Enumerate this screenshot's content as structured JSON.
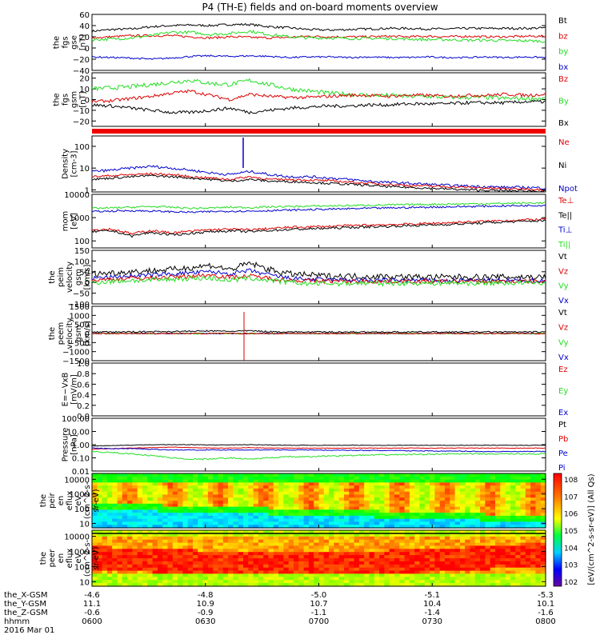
{
  "title": "P4 (TH-E) fields and on-board moments overview",
  "colors": {
    "black": "#000000",
    "red": "#dd0000",
    "green": "#22dd22",
    "blue": "#0000cc"
  },
  "chart_data": [
    {
      "type": "line",
      "ylabel": [
        "the",
        "fgs",
        "gse",
        "[nT]"
      ],
      "yticks": [
        "60",
        "40",
        "20",
        "0",
        "−20",
        "−40"
      ],
      "ylim": [
        -40,
        60
      ],
      "legend": [
        {
          "name": "Bt",
          "color": "black"
        },
        {
          "name": "bz",
          "color": "red"
        },
        {
          "name": "by",
          "color": "green"
        },
        {
          "name": "bx",
          "color": "blue"
        }
      ],
      "series": [
        {
          "name": "Bt",
          "color": "black",
          "noise": 2,
          "values": [
            30,
            33,
            34,
            38,
            40,
            41,
            40,
            42,
            42,
            38,
            36,
            33,
            32,
            33,
            34,
            35,
            35,
            34,
            34,
            35,
            35,
            35,
            35,
            36
          ]
        },
        {
          "name": "bz",
          "color": "red",
          "noise": 2,
          "values": [
            18,
            20,
            22,
            22,
            22,
            20,
            18,
            20,
            19,
            18,
            19,
            21,
            20,
            20,
            20,
            21,
            20,
            21,
            20,
            21,
            20,
            20,
            21,
            21
          ]
        },
        {
          "name": "by",
          "color": "green",
          "noise": 2.5,
          "values": [
            15,
            16,
            18,
            22,
            28,
            28,
            24,
            26,
            30,
            24,
            20,
            18,
            18,
            17,
            17,
            17,
            16,
            15,
            15,
            14,
            14,
            13,
            13,
            12
          ]
        },
        {
          "name": "bx",
          "color": "blue",
          "noise": 1.5,
          "values": [
            -16,
            -17,
            -18,
            -20,
            -18,
            -15,
            -14,
            -15,
            -14,
            -15,
            -17,
            -16,
            -16,
            -17,
            -16,
            -17,
            -17,
            -16,
            -17,
            -17,
            -16,
            -17,
            -16,
            -17
          ]
        }
      ]
    },
    {
      "type": "line",
      "ylabel": [
        "the",
        "fgs",
        "gsm",
        "[nT]"
      ],
      "yticks": [
        "20",
        "10",
        "0",
        "−10",
        "−20"
      ],
      "ylim": [
        -25,
        25
      ],
      "legend": [
        {
          "name": "Bz",
          "color": "red"
        },
        {
          "name": "By",
          "color": "green"
        },
        {
          "name": "Bx",
          "color": "black"
        }
      ],
      "series": [
        {
          "name": "By",
          "color": "green",
          "noise": 2,
          "values": [
            10,
            11,
            12,
            14,
            16,
            18,
            15,
            14,
            18,
            14,
            10,
            8,
            6,
            5,
            4,
            4,
            3,
            3,
            2,
            2,
            2,
            1,
            1,
            1
          ]
        },
        {
          "name": "Bz",
          "color": "red",
          "noise": 1.5,
          "values": [
            -2,
            -1,
            1,
            3,
            6,
            8,
            4,
            0,
            5,
            3,
            2,
            2,
            3,
            4,
            4,
            3,
            4,
            4,
            3,
            4,
            4,
            5,
            4,
            5
          ]
        },
        {
          "name": "Bx",
          "color": "black",
          "noise": 1.5,
          "values": [
            -5,
            -6,
            -8,
            -10,
            -12,
            -12,
            -10,
            -8,
            -12,
            -10,
            -8,
            -7,
            -6,
            -6,
            -5,
            -5,
            -4,
            -4,
            -4,
            -3,
            -3,
            -3,
            -2,
            -2
          ]
        }
      ]
    },
    {
      "type": "line",
      "log": true,
      "ylabel": [
        "Density",
        "[cm-3]"
      ],
      "yticks": [
        "100",
        "10",
        "1"
      ],
      "ylim": [
        0.8,
        300
      ],
      "legend": [
        {
          "name": "Ne",
          "color": "red"
        },
        {
          "name": "Ni",
          "color": "black"
        },
        {
          "name": "Npot",
          "color": "blue"
        }
      ],
      "series": [
        {
          "name": "Npot",
          "color": "blue",
          "noise": 0.06,
          "values": [
            7,
            8,
            10,
            12,
            10,
            8,
            6,
            5,
            7,
            5,
            4,
            4,
            3.5,
            3,
            2.5,
            2.2,
            2,
            1.8,
            1.6,
            1.5,
            1.4,
            1.3,
            1.3,
            1.2
          ]
        },
        {
          "name": "Ne",
          "color": "red",
          "noise": 0.05,
          "values": [
            4,
            4.5,
            5,
            5.5,
            5,
            4,
            3.5,
            3,
            4,
            3,
            3,
            2.8,
            2.6,
            2.3,
            2,
            1.8,
            1.6,
            1.5,
            1.4,
            1.3,
            1.2,
            1.1,
            1.1,
            1
          ]
        },
        {
          "name": "Ni",
          "color": "black",
          "noise": 0.05,
          "values": [
            3,
            3.5,
            4,
            4.5,
            4,
            3.5,
            3,
            2.5,
            3,
            2.5,
            2.4,
            2.2,
            2,
            1.8,
            1.6,
            1.4,
            1.3,
            1.2,
            1.1,
            1,
            0.95,
            0.9,
            0.9,
            0.85
          ]
        }
      ]
    },
    {
      "type": "line",
      "log": true,
      "ylabel": [
        "mom",
        "[eV]"
      ],
      "yticks": [
        "10000",
        "1000",
        "100"
      ],
      "ylim": [
        50,
        10000
      ],
      "legend": [
        {
          "name": "Te⊥",
          "color": "red"
        },
        {
          "name": "Te||",
          "color": "black"
        },
        {
          "name": "Ti⊥",
          "color": "blue"
        },
        {
          "name": "Ti||",
          "color": "green"
        }
      ],
      "series": [
        {
          "name": "Ti||",
          "color": "green",
          "noise": 0.04,
          "values": [
            2500,
            2600,
            2800,
            3000,
            2800,
            2500,
            2600,
            2800,
            2700,
            2900,
            3000,
            3100,
            3200,
            3300,
            3400,
            3500,
            3600,
            3700,
            3800,
            3900,
            4000,
            4100,
            4200,
            4300
          ]
        },
        {
          "name": "Ti⊥",
          "color": "blue",
          "noise": 0.04,
          "values": [
            1800,
            1900,
            2000,
            1900,
            1800,
            1700,
            1800,
            1900,
            1900,
            2000,
            2100,
            2200,
            2300,
            2400,
            2500,
            2600,
            2700,
            2800,
            2900,
            3000,
            3100,
            3200,
            3300,
            3400
          ]
        },
        {
          "name": "Te⊥",
          "color": "red",
          "noise": 0.05,
          "values": [
            300,
            320,
            200,
            280,
            220,
            260,
            300,
            320,
            300,
            340,
            380,
            400,
            420,
            450,
            480,
            500,
            520,
            560,
            600,
            650,
            700,
            750,
            800,
            850
          ]
        },
        {
          "name": "Te||",
          "color": "black",
          "noise": 0.05,
          "values": [
            250,
            270,
            160,
            230,
            180,
            210,
            250,
            270,
            250,
            280,
            310,
            330,
            350,
            380,
            400,
            420,
            450,
            480,
            510,
            550,
            600,
            650,
            700,
            750
          ]
        }
      ]
    },
    {
      "type": "line",
      "ylabel": [
        "the",
        "peim",
        "velocity",
        "gsm",
        "[km/s]"
      ],
      "yticks": [
        "150",
        "100",
        "50",
        "0",
        "−50",
        "−100"
      ],
      "ylim": [
        -100,
        150
      ],
      "legend": [
        {
          "name": "Vt",
          "color": "black"
        },
        {
          "name": "Vz",
          "color": "red"
        },
        {
          "name": "Vy",
          "color": "green"
        },
        {
          "name": "Vx",
          "color": "blue"
        }
      ],
      "series": [
        {
          "name": "Vt",
          "color": "black",
          "noise": 14,
          "values": [
            40,
            45,
            50,
            55,
            60,
            70,
            80,
            60,
            90,
            60,
            40,
            35,
            30,
            30,
            28,
            28,
            26,
            25,
            25,
            26,
            25,
            25,
            26,
            25
          ]
        },
        {
          "name": "Vx",
          "color": "blue",
          "noise": 10,
          "values": [
            20,
            25,
            30,
            35,
            40,
            45,
            50,
            40,
            55,
            35,
            20,
            15,
            12,
            12,
            10,
            10,
            10,
            10,
            8,
            10,
            8,
            8,
            10,
            8
          ]
        },
        {
          "name": "Vz",
          "color": "red",
          "noise": 10,
          "values": [
            10,
            15,
            20,
            20,
            25,
            30,
            35,
            25,
            30,
            20,
            10,
            8,
            6,
            6,
            5,
            5,
            5,
            4,
            4,
            5,
            4,
            4,
            5,
            4
          ]
        },
        {
          "name": "Vy",
          "color": "green",
          "noise": 12,
          "values": [
            0,
            5,
            10,
            10,
            15,
            20,
            20,
            10,
            20,
            10,
            0,
            -5,
            -5,
            -4,
            -4,
            -3,
            -3,
            -3,
            -2,
            -3,
            -2,
            -2,
            -3,
            -2
          ]
        }
      ]
    },
    {
      "type": "line",
      "ylabel": [
        "the",
        "peem",
        "velocity",
        "gsm",
        "[km/s]"
      ],
      "yticks": [
        "1500",
        "1000",
        "500",
        "0",
        "−500",
        "−1000",
        "−1500"
      ],
      "ylim": [
        -1500,
        1500
      ],
      "legend": [
        {
          "name": "Vt",
          "color": "black"
        },
        {
          "name": "Vz",
          "color": "red"
        },
        {
          "name": "Vy",
          "color": "green"
        },
        {
          "name": "Vx",
          "color": "blue"
        }
      ],
      "series": [
        {
          "name": "Vx",
          "color": "blue",
          "noise": 30,
          "values": [
            0,
            0,
            0,
            0,
            0,
            0,
            0,
            0,
            0,
            0,
            0,
            0,
            0,
            0,
            0,
            0,
            0,
            0,
            0,
            0,
            0,
            0,
            0,
            0
          ]
        },
        {
          "name": "Vy",
          "color": "green",
          "noise": 30,
          "values": [
            0,
            0,
            0,
            0,
            0,
            0,
            0,
            0,
            0,
            0,
            0,
            0,
            0,
            0,
            0,
            0,
            0,
            0,
            0,
            0,
            0,
            0,
            0,
            0
          ]
        },
        {
          "name": "Vz",
          "color": "red",
          "noise": 30,
          "values": [
            0,
            0,
            0,
            0,
            0,
            0,
            0,
            0,
            0,
            0,
            0,
            0,
            0,
            0,
            0,
            0,
            0,
            0,
            0,
            0,
            0,
            0,
            0,
            0
          ]
        },
        {
          "name": "Vt",
          "color": "black",
          "noise": 40,
          "values": [
            80,
            80,
            90,
            100,
            110,
            120,
            140,
            120,
            150,
            100,
            90,
            80,
            80,
            80,
            80,
            80,
            80,
            80,
            80,
            80,
            80,
            80,
            80,
            80
          ]
        }
      ]
    },
    {
      "type": "line",
      "ylabel": [
        "E=−VxB",
        "[mV/m]"
      ],
      "yticks": [
        "1.0",
        "0.8",
        "0.6",
        "0.4",
        "0.2",
        "0.0"
      ],
      "ylim": [
        0,
        1
      ],
      "legend": [
        {
          "name": "Ez",
          "color": "red"
        },
        {
          "name": "Ey",
          "color": "green"
        },
        {
          "name": "Ex",
          "color": "blue"
        }
      ],
      "series": []
    },
    {
      "type": "line",
      "log": true,
      "ylabel": [
        "Pressure",
        "[nPa]"
      ],
      "yticks": [
        "100.00",
        "10.00",
        "1.00",
        "0.10",
        "0.01"
      ],
      "ylim": [
        0.01,
        100
      ],
      "legend": [
        {
          "name": "Pt",
          "color": "black"
        },
        {
          "name": "Pb",
          "color": "red"
        },
        {
          "name": "Pe",
          "color": "blue"
        },
        {
          "name": "Pi",
          "color": "blue"
        }
      ],
      "series": [
        {
          "name": "Pt",
          "color": "black",
          "noise": 0.02,
          "values": [
            0.8,
            0.85,
            0.9,
            1.0,
            1.0,
            1.0,
            0.95,
            0.95,
            1.0,
            0.95,
            0.9,
            0.9,
            0.9,
            0.9,
            0.9,
            0.9,
            0.9,
            0.9,
            0.9,
            0.9,
            0.9,
            0.9,
            0.9,
            0.9
          ]
        },
        {
          "name": "Pb",
          "color": "red",
          "noise": 0.02,
          "values": [
            0.45,
            0.5,
            0.55,
            0.6,
            0.65,
            0.6,
            0.55,
            0.55,
            0.6,
            0.55,
            0.55,
            0.55,
            0.55,
            0.55,
            0.55,
            0.55,
            0.55,
            0.55,
            0.55,
            0.55,
            0.55,
            0.55,
            0.55,
            0.55
          ]
        },
        {
          "name": "Pe",
          "color": "blue",
          "noise": 0.03,
          "values": [
            0.55,
            0.5,
            0.5,
            0.45,
            0.4,
            0.4,
            0.4,
            0.4,
            0.4,
            0.4,
            0.4,
            0.4,
            0.38,
            0.38,
            0.36,
            0.36,
            0.34,
            0.34,
            0.32,
            0.32,
            0.3,
            0.3,
            0.3,
            0.3
          ]
        },
        {
          "name": "Pi",
          "color": "green",
          "noise": 0.05,
          "values": [
            0.3,
            0.25,
            0.2,
            0.15,
            0.1,
            0.08,
            0.08,
            0.1,
            0.08,
            0.1,
            0.12,
            0.12,
            0.14,
            0.15,
            0.16,
            0.17,
            0.18,
            0.19,
            0.2,
            0.2,
            0.2,
            0.2,
            0.2,
            0.2
          ]
        }
      ]
    },
    {
      "type": "heatmap",
      "ylabel": [
        "the",
        "peir",
        "en",
        "eflux",
        "eV",
        "(cm^2-s-",
        "sr-eV)"
      ],
      "yticks": [
        "10000",
        "1000",
        "100",
        "10"
      ],
      "ylim": [
        5,
        25000
      ]
    },
    {
      "type": "heatmap",
      "ylabel": [
        "the",
        "peer",
        "en",
        "eflux",
        "eV",
        "(cm^2-s-",
        "sr-eV)"
      ],
      "yticks": [
        "10000",
        "1000",
        "100",
        "10"
      ],
      "ylim": [
        5,
        25000
      ]
    }
  ],
  "colorbar": {
    "ticks": [
      "10^8",
      "10^7",
      "10^6",
      "10^5",
      "10^4",
      "10^3",
      "10^2"
    ],
    "label": "[eV/(cm^2-s-sr-eV)] (All Qs)"
  },
  "xaxis": {
    "ticks": [
      {
        "X": "-4.6",
        "Y": "11.1",
        "Z": "-0.6",
        "hhmm": "0600"
      },
      {
        "X": "-4.8",
        "Y": "10.9",
        "Z": "-0.9",
        "hhmm": "0630"
      },
      {
        "X": "-5.0",
        "Y": "10.7",
        "Z": "-1.1",
        "hhmm": "0700"
      },
      {
        "X": "-5.1",
        "Y": "10.4",
        "Z": "-1.4",
        "hhmm": "0730"
      },
      {
        "X": "-5.3",
        "Y": "10.1",
        "Z": "-1.6",
        "hhmm": "0800"
      }
    ],
    "row_labels": [
      "the_X-GSM",
      "the_Y-GSM",
      "the_Z-GSM",
      "hhmm"
    ],
    "date": "2016 Mar 01"
  }
}
